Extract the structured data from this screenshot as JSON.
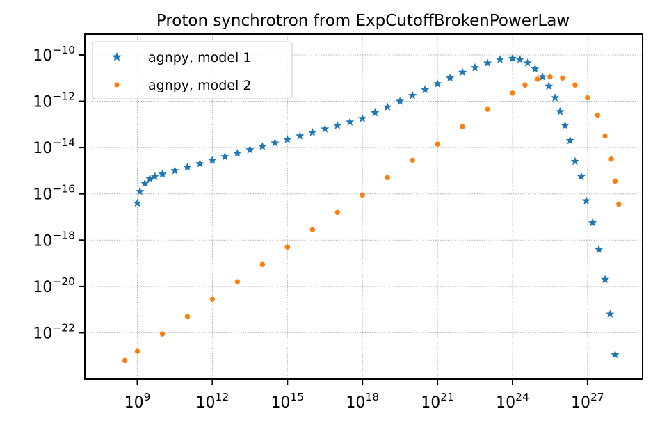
{
  "chart_data": {
    "type": "scatter",
    "title": "Proton synchrotron from ExpCutoffBrokenPowerLaw",
    "xlabel": "",
    "ylabel": "",
    "xscale": "log",
    "yscale": "log",
    "xlim_log10": [
      6.9,
      29.2
    ],
    "ylim_log10": [
      -24.0,
      -9.1
    ],
    "grid": true,
    "grid_style": "dotted",
    "legend_placement": "upper-left",
    "x_ticks": [
      {
        "exp": 9,
        "base": "10",
        "sup": "9"
      },
      {
        "exp": 12,
        "base": "10",
        "sup": "12"
      },
      {
        "exp": 15,
        "base": "10",
        "sup": "15"
      },
      {
        "exp": 18,
        "base": "10",
        "sup": "18"
      },
      {
        "exp": 21,
        "base": "10",
        "sup": "21"
      },
      {
        "exp": 24,
        "base": "10",
        "sup": "24"
      },
      {
        "exp": 27,
        "base": "10",
        "sup": "27"
      }
    ],
    "y_ticks": [
      {
        "exp": -10,
        "base": "10",
        "sup": "−10"
      },
      {
        "exp": -12,
        "base": "10",
        "sup": "−12"
      },
      {
        "exp": -14,
        "base": "10",
        "sup": "−14"
      },
      {
        "exp": -16,
        "base": "10",
        "sup": "−16"
      },
      {
        "exp": -18,
        "base": "10",
        "sup": "−18"
      },
      {
        "exp": -20,
        "base": "10",
        "sup": "−20"
      },
      {
        "exp": -22,
        "base": "10",
        "sup": "−22"
      }
    ],
    "series": [
      {
        "name": "agnpy, model 1",
        "marker": "star",
        "color": "#1f77b4",
        "points_log10": [
          [
            9.0,
            -16.4
          ],
          [
            9.1,
            -15.9
          ],
          [
            9.3,
            -15.55
          ],
          [
            9.5,
            -15.35
          ],
          [
            9.7,
            -15.25
          ],
          [
            10.0,
            -15.15
          ],
          [
            10.5,
            -15.0
          ],
          [
            11.0,
            -14.85
          ],
          [
            11.5,
            -14.7
          ],
          [
            12.0,
            -14.55
          ],
          [
            12.5,
            -14.4
          ],
          [
            13.0,
            -14.25
          ],
          [
            13.5,
            -14.1
          ],
          [
            14.0,
            -13.95
          ],
          [
            14.5,
            -13.8
          ],
          [
            15.0,
            -13.65
          ],
          [
            15.5,
            -13.5
          ],
          [
            16.0,
            -13.35
          ],
          [
            16.5,
            -13.2
          ],
          [
            17.0,
            -13.05
          ],
          [
            17.5,
            -12.9
          ],
          [
            18.0,
            -12.75
          ],
          [
            18.5,
            -12.5
          ],
          [
            19.0,
            -12.25
          ],
          [
            19.5,
            -12.0
          ],
          [
            20.0,
            -11.75
          ],
          [
            20.5,
            -11.5
          ],
          [
            21.0,
            -11.25
          ],
          [
            21.5,
            -11.0
          ],
          [
            22.0,
            -10.75
          ],
          [
            22.5,
            -10.55
          ],
          [
            23.0,
            -10.35
          ],
          [
            23.5,
            -10.2
          ],
          [
            24.0,
            -10.15
          ],
          [
            24.3,
            -10.2
          ],
          [
            24.6,
            -10.35
          ],
          [
            24.9,
            -10.6
          ],
          [
            25.2,
            -10.95
          ],
          [
            25.45,
            -11.35
          ],
          [
            25.7,
            -11.85
          ],
          [
            25.9,
            -12.45
          ],
          [
            26.1,
            -13.05
          ],
          [
            26.3,
            -13.7
          ],
          [
            26.5,
            -14.6
          ],
          [
            26.75,
            -15.25
          ],
          [
            26.95,
            -16.3
          ],
          [
            27.2,
            -17.25
          ],
          [
            27.45,
            -18.4
          ],
          [
            27.7,
            -19.7
          ],
          [
            27.9,
            -21.2
          ],
          [
            28.1,
            -22.95
          ]
        ]
      },
      {
        "name": "agnpy, model 2",
        "marker": "circle",
        "color": "#ff7f0e",
        "points_log10": [
          [
            8.5,
            -23.2
          ],
          [
            9.0,
            -22.8
          ],
          [
            10.0,
            -22.05
          ],
          [
            11.0,
            -21.3
          ],
          [
            12.0,
            -20.55
          ],
          [
            13.0,
            -19.8
          ],
          [
            14.0,
            -19.05
          ],
          [
            15.0,
            -18.3
          ],
          [
            16.0,
            -17.55
          ],
          [
            17.0,
            -16.8
          ],
          [
            18.0,
            -16.05
          ],
          [
            19.0,
            -15.3
          ],
          [
            20.0,
            -14.55
          ],
          [
            21.0,
            -13.85
          ],
          [
            22.0,
            -13.1
          ],
          [
            23.0,
            -12.35
          ],
          [
            24.0,
            -11.65
          ],
          [
            24.5,
            -11.3
          ],
          [
            25.0,
            -11.05
          ],
          [
            25.5,
            -10.95
          ],
          [
            26.0,
            -11.0
          ],
          [
            26.5,
            -11.3
          ],
          [
            27.0,
            -11.85
          ],
          [
            27.4,
            -12.6
          ],
          [
            27.7,
            -13.5
          ],
          [
            27.95,
            -14.5
          ],
          [
            28.1,
            -15.45
          ],
          [
            28.25,
            -16.45
          ]
        ]
      }
    ]
  }
}
